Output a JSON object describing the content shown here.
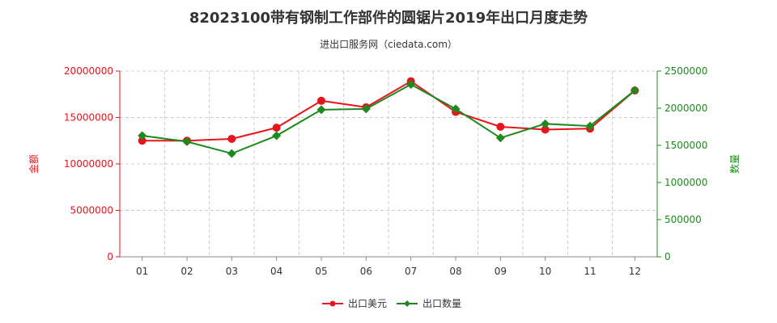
{
  "chart_data": {
    "type": "line",
    "title": "82023100带有钢制工作部件的圆锯片2019年出口月度走势",
    "subtitle": "进出口服务网（ciedata.com）",
    "categories": [
      "01",
      "02",
      "03",
      "04",
      "05",
      "06",
      "07",
      "08",
      "09",
      "10",
      "11",
      "12"
    ],
    "y_left": {
      "label": "金额",
      "ylim": [
        0,
        20000000
      ],
      "ticks": [
        "0",
        "5000000",
        "10000000",
        "15000000",
        "20000000"
      ]
    },
    "y_right": {
      "label": "数量",
      "ylim": [
        0,
        2500000
      ],
      "ticks": [
        "0",
        "500000",
        "1000000",
        "1500000",
        "2000000",
        "2500000"
      ]
    },
    "series": [
      {
        "name": "出口美元",
        "axis": "left",
        "color": "#e8141b",
        "values": [
          12500000,
          12500000,
          12700000,
          13900000,
          16800000,
          16100000,
          18900000,
          15600000,
          14000000,
          13700000,
          13800000,
          17900000
        ]
      },
      {
        "name": "出口数量",
        "axis": "right",
        "color": "#1e8a1e",
        "values": [
          1630000,
          1550000,
          1390000,
          1630000,
          1980000,
          1990000,
          2320000,
          1990000,
          1600000,
          1790000,
          1760000,
          2240000
        ]
      }
    ],
    "grid": true,
    "legend_position": "bottom-center"
  }
}
